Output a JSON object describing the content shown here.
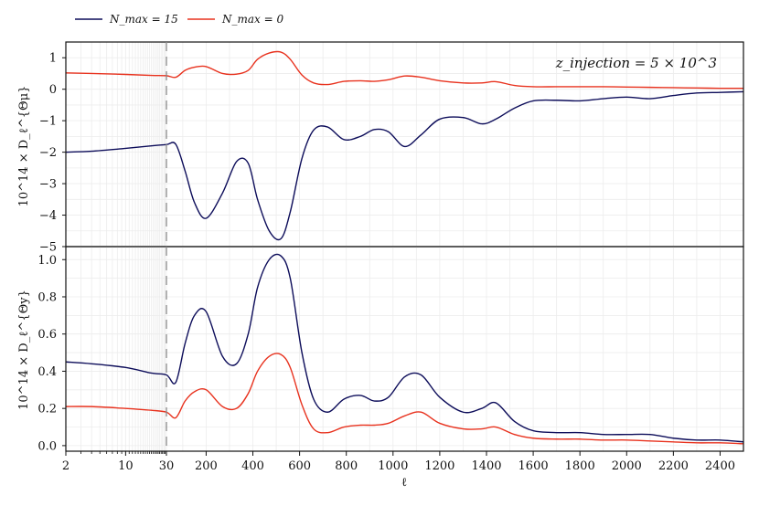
{
  "chart_data": [
    {
      "type": "line",
      "panel": "top",
      "ylabel": "10^14 × D_ℓ^{Θμ}",
      "xlabel": "",
      "annotation": "z_injection = 5 × 10^3",
      "ylim": [
        -5,
        1.5
      ],
      "yticks": [
        -5,
        -4,
        -3,
        -2,
        -1,
        0,
        1
      ],
      "ytick_labels": [
        "−5",
        "−4",
        "−3",
        "−2",
        "−1",
        "0",
        "1"
      ],
      "grid": true,
      "series": [
        {
          "name": "N_max = 15",
          "color": "#0d0d5a",
          "x": [
            2,
            4,
            10,
            20,
            30,
            70,
            110,
            150,
            200,
            270,
            330,
            380,
            420,
            470,
            520,
            560,
            610,
            660,
            720,
            790,
            860,
            920,
            980,
            1050,
            1120,
            1200,
            1300,
            1380,
            1440,
            1520,
            1600,
            1700,
            1800,
            1900,
            2000,
            2100,
            2200,
            2300,
            2400,
            2500
          ],
          "y": [
            -2.0,
            -1.97,
            -1.88,
            -1.8,
            -1.76,
            -1.75,
            -2.6,
            -3.6,
            -4.1,
            -3.3,
            -2.3,
            -2.35,
            -3.5,
            -4.5,
            -4.75,
            -3.9,
            -2.2,
            -1.3,
            -1.2,
            -1.6,
            -1.5,
            -1.28,
            -1.35,
            -1.82,
            -1.45,
            -0.95,
            -0.9,
            -1.1,
            -0.95,
            -0.6,
            -0.37,
            -0.35,
            -0.37,
            -0.3,
            -0.25,
            -0.3,
            -0.2,
            -0.12,
            -0.1,
            -0.08
          ]
        },
        {
          "name": "N_max = 0",
          "color": "#e8321e",
          "x": [
            2,
            4,
            10,
            20,
            30,
            70,
            110,
            150,
            200,
            270,
            330,
            380,
            420,
            470,
            520,
            560,
            610,
            660,
            720,
            790,
            860,
            920,
            980,
            1050,
            1120,
            1200,
            1300,
            1380,
            1440,
            1520,
            1600,
            1700,
            1800,
            1900,
            2000,
            2100,
            2200,
            2300,
            2400,
            2500
          ],
          "y": [
            0.52,
            0.5,
            0.47,
            0.44,
            0.43,
            0.38,
            0.6,
            0.7,
            0.72,
            0.5,
            0.48,
            0.6,
            0.95,
            1.15,
            1.18,
            0.95,
            0.45,
            0.2,
            0.15,
            0.25,
            0.27,
            0.25,
            0.3,
            0.42,
            0.38,
            0.27,
            0.2,
            0.2,
            0.24,
            0.12,
            0.08,
            0.08,
            0.08,
            0.08,
            0.07,
            0.06,
            0.05,
            0.04,
            0.03,
            0.03
          ]
        }
      ]
    },
    {
      "type": "line",
      "panel": "bottom",
      "ylabel": "10^14 × D_ℓ^{Θy}",
      "xlabel": "ℓ",
      "ylim": [
        -0.03,
        1.07
      ],
      "yticks": [
        0.0,
        0.2,
        0.4,
        0.6,
        0.8,
        1.0
      ],
      "ytick_labels": [
        "0.0",
        "0.2",
        "0.4",
        "0.6",
        "0.8",
        "1.0"
      ],
      "grid": true,
      "series": [
        {
          "name": "N_max = 15",
          "color": "#0d0d5a",
          "x": [
            2,
            4,
            10,
            20,
            30,
            70,
            110,
            150,
            200,
            270,
            330,
            380,
            420,
            470,
            520,
            560,
            610,
            660,
            720,
            790,
            860,
            920,
            980,
            1050,
            1120,
            1200,
            1300,
            1380,
            1440,
            1520,
            1600,
            1700,
            1800,
            1900,
            2000,
            2100,
            2200,
            2300,
            2400,
            2500
          ],
          "y": [
            0.45,
            0.44,
            0.42,
            0.39,
            0.38,
            0.34,
            0.55,
            0.7,
            0.72,
            0.48,
            0.44,
            0.6,
            0.85,
            1.0,
            1.02,
            0.9,
            0.5,
            0.25,
            0.18,
            0.25,
            0.27,
            0.24,
            0.26,
            0.37,
            0.38,
            0.26,
            0.18,
            0.2,
            0.23,
            0.13,
            0.08,
            0.07,
            0.07,
            0.06,
            0.06,
            0.06,
            0.04,
            0.03,
            0.03,
            0.02
          ]
        },
        {
          "name": "N_max = 0",
          "color": "#e8321e",
          "x": [
            2,
            4,
            10,
            20,
            30,
            70,
            110,
            150,
            200,
            270,
            330,
            380,
            420,
            470,
            520,
            560,
            610,
            660,
            720,
            790,
            860,
            920,
            980,
            1050,
            1120,
            1200,
            1300,
            1380,
            1440,
            1520,
            1600,
            1700,
            1800,
            1900,
            2000,
            2100,
            2200,
            2300,
            2400,
            2500
          ],
          "y": [
            0.21,
            0.21,
            0.2,
            0.19,
            0.18,
            0.15,
            0.24,
            0.29,
            0.3,
            0.21,
            0.2,
            0.28,
            0.4,
            0.48,
            0.49,
            0.42,
            0.22,
            0.09,
            0.07,
            0.1,
            0.11,
            0.11,
            0.12,
            0.16,
            0.18,
            0.12,
            0.09,
            0.09,
            0.1,
            0.06,
            0.04,
            0.035,
            0.035,
            0.03,
            0.03,
            0.025,
            0.02,
            0.015,
            0.015,
            0.01
          ]
        }
      ]
    }
  ],
  "legend": {
    "placement": "top-left, outside",
    "entries": [
      {
        "label": "N_max = 15",
        "color": "#0d0d5a"
      },
      {
        "label": "N_max = 0",
        "color": "#e8321e"
      }
    ]
  },
  "x_axis": {
    "scale": "log from 2 to 30, linear from 30 to 2500",
    "xlim": [
      2,
      2500
    ],
    "ticks": [
      2,
      10,
      30,
      200,
      400,
      600,
      800,
      1000,
      1200,
      1400,
      1600,
      1800,
      2000,
      2200,
      2400
    ],
    "tick_labels": [
      "2",
      "10",
      "30",
      "200",
      "400",
      "600",
      "800",
      "1000",
      "1200",
      "1400",
      "1600",
      "1800",
      "2000",
      "2200",
      "2400"
    ],
    "vline": {
      "x": 30,
      "style": "dashed",
      "color": "#888888"
    }
  }
}
